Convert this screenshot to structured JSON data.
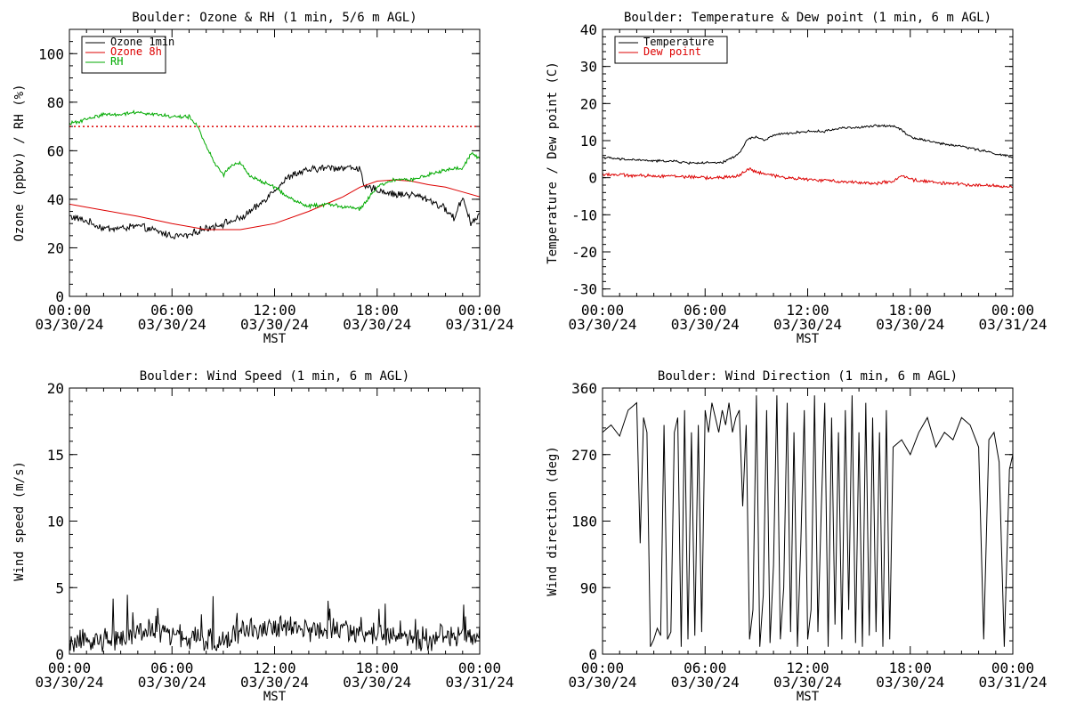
{
  "figure": {
    "x_tick_labels": [
      {
        "time": "00:00",
        "date": "03/30/24"
      },
      {
        "time": "06:00",
        "date": "03/30/24"
      },
      {
        "time": "12:00",
        "date": "03/30/24"
      },
      {
        "time": "18:00",
        "date": "03/30/24"
      },
      {
        "time": "00:00",
        "date": "03/31/24"
      }
    ],
    "xlabel": "MST"
  },
  "chart_data": [
    {
      "id": "ozone_rh",
      "type": "line",
      "title": "Boulder: Ozone & RH (1 min, 5/6 m AGL)",
      "xlabel": "MST",
      "ylabel": "Ozone (ppbv) / RH (%)",
      "xlim": [
        0,
        24
      ],
      "ylim": [
        0,
        110
      ],
      "yticks": [
        0,
        20,
        40,
        60,
        80,
        100
      ],
      "yminor": 5,
      "grid": false,
      "legend_position": "top-left",
      "reference_lines": [
        {
          "y": 70,
          "color": "#dd0000",
          "style": "dotted"
        }
      ],
      "series": [
        {
          "name": "Ozone 1min",
          "color": "#000000",
          "noise": 1.2,
          "x": [
            0,
            1,
            2,
            3,
            4,
            5,
            6,
            7,
            7.5,
            8,
            9,
            10,
            11,
            12,
            13,
            14,
            15,
            16,
            17,
            17.2,
            18,
            19,
            20,
            21,
            22,
            22.5,
            23,
            23.5,
            24
          ],
          "y": [
            33,
            31,
            28,
            28,
            29,
            27,
            25,
            25,
            27,
            28,
            30,
            32,
            37,
            44,
            50,
            52,
            53,
            53,
            53,
            45,
            44,
            42,
            42,
            40,
            36,
            32,
            41,
            30,
            34
          ]
        },
        {
          "name": "Ozone 8h",
          "color": "#dd0000",
          "noise": 0,
          "x": [
            0,
            2,
            4,
            6,
            8,
            10,
            12,
            14,
            16,
            17,
            18,
            19,
            20,
            21,
            22,
            23,
            24
          ],
          "y": [
            38,
            35.5,
            33,
            30,
            27.5,
            27.5,
            30,
            35,
            41,
            45,
            47.5,
            48,
            47.5,
            46,
            45,
            43,
            41
          ]
        },
        {
          "name": "RH",
          "color": "#00aa00",
          "noise": 0.6,
          "x": [
            0,
            1,
            2,
            3,
            4,
            5,
            6,
            7,
            7.5,
            8,
            8.5,
            9,
            9.5,
            10,
            10.5,
            11,
            12,
            13,
            14,
            15,
            16,
            17,
            18,
            19,
            20,
            21,
            22,
            23,
            23.5,
            24
          ],
          "y": [
            71,
            73,
            75,
            75,
            76,
            75,
            74,
            74,
            70,
            62,
            55,
            50,
            54,
            55,
            50,
            48,
            45,
            40,
            37,
            38,
            37,
            36,
            45,
            48,
            48,
            50,
            52,
            53,
            59,
            57
          ]
        }
      ]
    },
    {
      "id": "temp_dew",
      "type": "line",
      "title": "Boulder: Temperature & Dew point (1 min, 6 m AGL)",
      "xlabel": "MST",
      "ylabel": "Temperature / Dew point (C)",
      "xlim": [
        0,
        24
      ],
      "ylim": [
        -32,
        40
      ],
      "yticks": [
        -30,
        -20,
        -10,
        0,
        10,
        20,
        30,
        40
      ],
      "yminor": 2,
      "grid": false,
      "legend_position": "top-left",
      "series": [
        {
          "name": "Temperature",
          "color": "#000000",
          "noise": 0.25,
          "x": [
            0,
            1,
            2,
            3,
            4,
            5,
            6,
            7,
            8,
            8.5,
            9,
            9.5,
            10,
            11,
            12,
            13,
            14,
            15,
            16,
            17,
            17.5,
            18,
            19,
            20,
            21,
            22,
            23,
            24
          ],
          "y": [
            5.5,
            5,
            4.8,
            4.5,
            4.5,
            4,
            4,
            4,
            6.5,
            10.5,
            11,
            10,
            11.5,
            12,
            12.5,
            12.5,
            13.5,
            13.5,
            14,
            14,
            13,
            11,
            10,
            9,
            8.5,
            7.5,
            6.5,
            5.5
          ]
        },
        {
          "name": "Dew point",
          "color": "#dd0000",
          "noise": 0.35,
          "x": [
            0,
            2,
            4,
            6,
            7,
            8,
            8.5,
            9,
            10,
            12,
            14,
            16,
            17,
            17.5,
            18,
            20,
            22,
            24
          ],
          "y": [
            1,
            0.5,
            0.5,
            0,
            0,
            0.5,
            2.5,
            1.5,
            0.5,
            -0.5,
            -1,
            -1.5,
            -1,
            0.5,
            -0.5,
            -1.5,
            -2,
            -2.5
          ]
        }
      ]
    },
    {
      "id": "wind_speed",
      "type": "line",
      "title": "Boulder: Wind Speed (1 min, 6 m AGL)",
      "xlabel": "MST",
      "ylabel": "Wind speed (m/s)",
      "xlim": [
        0,
        24
      ],
      "ylim": [
        0,
        20
      ],
      "yticks": [
        0,
        5,
        10,
        15,
        20
      ],
      "yminor": 1,
      "grid": false,
      "series": [
        {
          "name": "",
          "color": "#000000",
          "noise": 0.7,
          "x": [
            0,
            1,
            2,
            3,
            4,
            5,
            6,
            7,
            8,
            9,
            10,
            11,
            12,
            13,
            14,
            15,
            16,
            17,
            18,
            19,
            20,
            21,
            22,
            23,
            24
          ],
          "y": [
            0.5,
            1.0,
            1.2,
            1.0,
            1.8,
            1.6,
            1.5,
            1.2,
            1.0,
            1.0,
            1.8,
            1.8,
            2.0,
            2.0,
            1.8,
            1.8,
            1.8,
            1.6,
            1.5,
            1.2,
            1.2,
            1.0,
            1.5,
            1.0,
            1.5
          ]
        }
      ]
    },
    {
      "id": "wind_dir",
      "type": "line",
      "title": "Boulder: Wind Direction (1 min, 6 m AGL)",
      "xlabel": "MST",
      "ylabel": "Wind direction (deg)",
      "xlim": [
        0,
        24
      ],
      "ylim": [
        0,
        360
      ],
      "yticks": [
        0,
        90,
        180,
        270,
        360
      ],
      "yminor": 18,
      "grid": false,
      "series": [
        {
          "name": "",
          "color": "#000000",
          "noise": 0,
          "x": [
            0,
            0.5,
            1,
            1.5,
            2,
            2.2,
            2.4,
            2.6,
            2.8,
            3.0,
            3.2,
            3.4,
            3.6,
            3.8,
            4.0,
            4.2,
            4.4,
            4.6,
            4.8,
            5.0,
            5.2,
            5.4,
            5.6,
            5.8,
            6.0,
            6.2,
            6.4,
            6.6,
            6.8,
            7.0,
            7.2,
            7.4,
            7.6,
            7.8,
            8.0,
            8.2,
            8.4,
            8.6,
            8.8,
            9.0,
            9.2,
            9.4,
            9.6,
            9.8,
            10.0,
            10.2,
            10.4,
            10.6,
            10.8,
            11.0,
            11.2,
            11.4,
            11.6,
            11.8,
            12.0,
            12.2,
            12.4,
            12.6,
            12.8,
            13.0,
            13.2,
            13.4,
            13.6,
            13.8,
            14.0,
            14.2,
            14.4,
            14.6,
            14.8,
            15.0,
            15.2,
            15.4,
            15.6,
            15.8,
            16.0,
            16.2,
            16.4,
            16.6,
            16.8,
            17.0,
            17.5,
            18.0,
            18.5,
            19.0,
            19.5,
            20.0,
            20.5,
            21.0,
            21.5,
            22.0,
            22.3,
            22.6,
            22.9,
            23.2,
            23.5,
            23.8,
            24.0
          ],
          "y": [
            300,
            310,
            295,
            330,
            340,
            150,
            320,
            300,
            10,
            20,
            35,
            25,
            310,
            20,
            30,
            300,
            320,
            10,
            330,
            20,
            300,
            25,
            310,
            30,
            330,
            300,
            340,
            320,
            300,
            330,
            310,
            340,
            300,
            320,
            330,
            200,
            310,
            20,
            60,
            350,
            10,
            80,
            330,
            15,
            120,
            350,
            20,
            90,
            340,
            30,
            300,
            10,
            150,
            330,
            20,
            60,
            350,
            30,
            200,
            340,
            10,
            320,
            40,
            300,
            20,
            330,
            60,
            350,
            15,
            300,
            10,
            340,
            25,
            320,
            30,
            300,
            10,
            330,
            20,
            280,
            290,
            270,
            300,
            320,
            280,
            300,
            290,
            320,
            310,
            280,
            20,
            290,
            300,
            260,
            10,
            250,
            270
          ]
        }
      ]
    }
  ]
}
